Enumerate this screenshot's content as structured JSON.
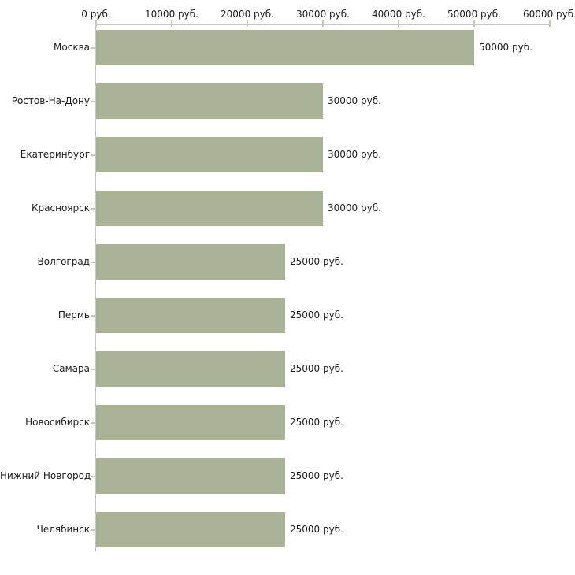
{
  "chart_data": {
    "type": "bar",
    "orientation": "horizontal",
    "categories": [
      "Москва",
      "Ростов-На-Дону",
      "Екатеринбург",
      "Красноярск",
      "Волгоград",
      "Пермь",
      "Самара",
      "Новосибирск",
      "Нижний Новгород",
      "Челябинск"
    ],
    "values": [
      50000,
      30000,
      30000,
      30000,
      25000,
      25000,
      25000,
      25000,
      25000,
      25000
    ],
    "value_labels": [
      "50000 руб.",
      "30000 руб.",
      "30000 руб.",
      "30000 руб.",
      "25000 руб.",
      "25000 руб.",
      "25000 руб.",
      "25000 руб.",
      "25000 руб.",
      "25000 руб."
    ],
    "x_tick_values": [
      0,
      10000,
      20000,
      30000,
      40000,
      50000,
      60000
    ],
    "x_tick_labels": [
      "0 руб.",
      "10000 руб.",
      "20000 руб.",
      "30000 руб.",
      "40000 руб.",
      "50000 руб.",
      "60000 руб."
    ],
    "xlim": [
      0,
      60000
    ],
    "unit": "руб.",
    "title": "",
    "xlabel": "",
    "ylabel": "",
    "grid": false,
    "legend": false,
    "colors": {
      "bar": "#aab298",
      "axis_line": "#c6c6c6",
      "tick": "#cbcb9e",
      "category_tick": "#c9c9b4",
      "text": "#1c1c1c",
      "background": "#ffffff"
    }
  }
}
